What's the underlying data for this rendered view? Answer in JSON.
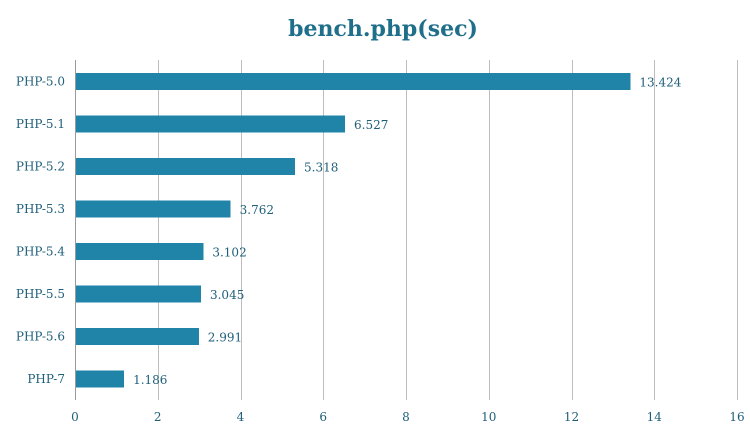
{
  "chart_data": {
    "type": "bar",
    "orientation": "horizontal",
    "title": "bench.php(sec)",
    "xlabel": "",
    "ylabel": "",
    "categories": [
      "PHP-5.0",
      "PHP-5.1",
      "PHP-5.2",
      "PHP-5.3",
      "PHP-5.4",
      "PHP-5.5",
      "PHP-5.6",
      "PHP-7"
    ],
    "values": [
      13.424,
      6.527,
      5.318,
      3.762,
      3.102,
      3.045,
      2.991,
      1.186
    ],
    "data_labels": [
      "13.424",
      "6.527",
      "5.318",
      "3.762",
      "3.102",
      "3.045",
      "2.991",
      "1.186"
    ],
    "xlim": [
      0,
      16
    ],
    "x_ticks": [
      0,
      2,
      4,
      6,
      8,
      10,
      12,
      14,
      16
    ],
    "x_tick_labels": [
      "0",
      "2",
      "4",
      "6",
      "8",
      "10",
      "12",
      "14",
      "16"
    ],
    "grid": "vertical",
    "legend": "none",
    "colors": {
      "bar": "#1f84a8",
      "text": "#1f5f7a",
      "title": "#1f6f8b",
      "grid": "#bdbdbd"
    }
  }
}
